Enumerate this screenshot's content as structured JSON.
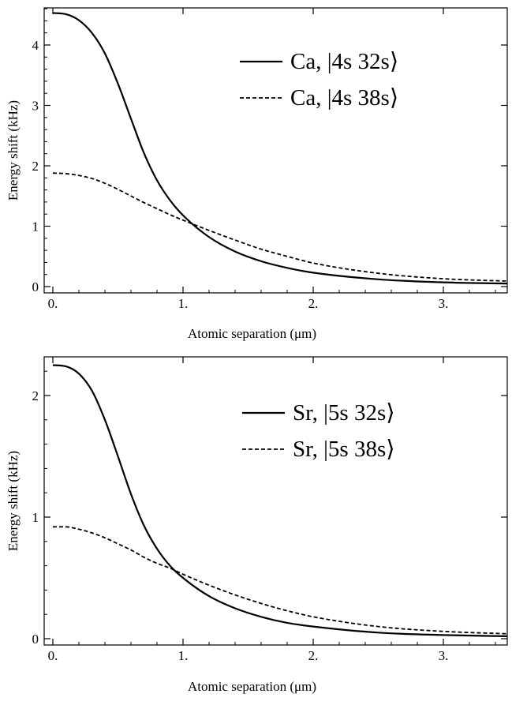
{
  "chart_data": [
    {
      "type": "line",
      "xlabel": "Atomic separation (μm)",
      "ylabel": "Energy shift (kHz)",
      "xlim": [
        0,
        3.5
      ],
      "ylim": [
        0,
        4.6
      ],
      "xticks": [
        "0.",
        "1.",
        "2.",
        "3."
      ],
      "xtick_values": [
        0,
        1,
        2,
        3
      ],
      "yticks": [
        "0",
        "1",
        "2",
        "3",
        "4"
      ],
      "ytick_values": [
        0,
        1,
        2,
        3,
        4
      ],
      "legend_position": "top-right",
      "series": [
        {
          "name": "Ca, |4s 32s⟩",
          "style": "solid",
          "x": [
            0,
            0.1,
            0.2,
            0.3,
            0.4,
            0.5,
            0.6,
            0.7,
            0.8,
            0.9,
            1.0,
            1.2,
            1.4,
            1.6,
            1.8,
            2.0,
            2.5,
            3.0,
            3.5
          ],
          "y": [
            4.53,
            4.51,
            4.41,
            4.2,
            3.86,
            3.36,
            2.78,
            2.21,
            1.76,
            1.43,
            1.18,
            0.82,
            0.58,
            0.42,
            0.31,
            0.23,
            0.12,
            0.07,
            0.05
          ]
        },
        {
          "name": "Ca, |4s 38s⟩",
          "style": "dashed",
          "x": [
            0,
            0.1,
            0.2,
            0.3,
            0.4,
            0.5,
            0.6,
            0.7,
            0.8,
            0.9,
            1.0,
            1.2,
            1.4,
            1.6,
            1.8,
            2.0,
            2.5,
            3.0,
            3.5
          ],
          "y": [
            1.88,
            1.87,
            1.84,
            1.79,
            1.71,
            1.61,
            1.5,
            1.39,
            1.29,
            1.19,
            1.1,
            0.93,
            0.77,
            0.62,
            0.5,
            0.39,
            0.22,
            0.13,
            0.09
          ]
        }
      ]
    },
    {
      "type": "line",
      "xlabel": "Atomic separation (μm)",
      "ylabel": "Energy shift (kHz)",
      "xlim": [
        0,
        3.5
      ],
      "ylim": [
        0,
        2.3
      ],
      "xticks": [
        "0.",
        "1.",
        "2.",
        "3."
      ],
      "xtick_values": [
        0,
        1,
        2,
        3
      ],
      "yticks": [
        "0",
        "1",
        "2"
      ],
      "ytick_values": [
        0,
        1,
        2
      ],
      "legend_position": "top-right",
      "series": [
        {
          "name": "Sr, |5s 32s⟩",
          "style": "solid",
          "x": [
            0,
            0.1,
            0.2,
            0.3,
            0.4,
            0.5,
            0.6,
            0.7,
            0.8,
            0.9,
            1.0,
            1.2,
            1.4,
            1.6,
            1.8,
            2.0,
            2.5,
            3.0,
            3.5
          ],
          "y": [
            2.25,
            2.24,
            2.18,
            2.04,
            1.8,
            1.5,
            1.19,
            0.93,
            0.74,
            0.6,
            0.5,
            0.35,
            0.25,
            0.18,
            0.13,
            0.1,
            0.05,
            0.03,
            0.02
          ]
        },
        {
          "name": "Sr, |5s 38s⟩",
          "style": "dashed",
          "x": [
            0,
            0.1,
            0.2,
            0.3,
            0.4,
            0.5,
            0.6,
            0.7,
            0.8,
            0.9,
            1.0,
            1.2,
            1.4,
            1.6,
            1.8,
            2.0,
            2.5,
            3.0,
            3.5
          ],
          "y": [
            0.92,
            0.92,
            0.9,
            0.87,
            0.83,
            0.78,
            0.73,
            0.67,
            0.62,
            0.58,
            0.53,
            0.44,
            0.36,
            0.29,
            0.23,
            0.18,
            0.1,
            0.06,
            0.04
          ]
        }
      ]
    }
  ]
}
